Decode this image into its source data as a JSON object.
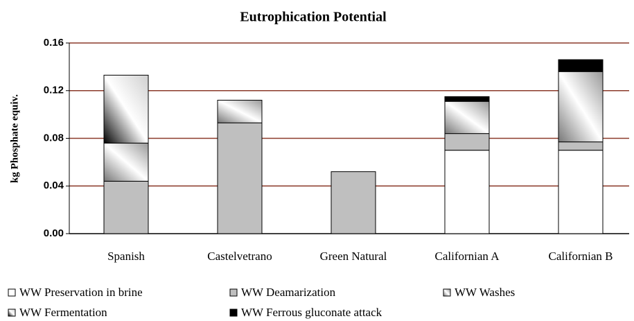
{
  "chart_data": {
    "type": "stacked_bar",
    "title": "Eutrophication Potential",
    "y_label": "kg Phosphate equiv.",
    "categories": [
      "Spanish",
      "Castelvetrano",
      "Green Natural",
      "Californian A",
      "Californian B"
    ],
    "series": [
      {
        "name": "WW Preservation in brine",
        "color": "#ffffff",
        "values": [
          0,
          0,
          0,
          0.07,
          0.07
        ]
      },
      {
        "name": "WW Deamarization",
        "color": "#bfbfbf",
        "values": [
          0.044,
          0.093,
          0.052,
          0.014,
          0.007
        ]
      },
      {
        "name": "WW Washes",
        "color": [
          "#777777",
          "#ffffff",
          "#999999"
        ],
        "values": [
          0.032,
          0.019,
          0,
          0.027,
          0.059
        ]
      },
      {
        "name": "WW Fermentation",
        "color": [
          "#000000",
          "#ffffff",
          "#d0d0d0"
        ],
        "values": [
          0.057,
          0,
          0,
          0,
          0
        ]
      },
      {
        "name": "WW Ferrous gluconate attack",
        "color": "#000000",
        "values": [
          0,
          0,
          0,
          0.004,
          0.01
        ]
      }
    ],
    "ylim": [
      0,
      0.16
    ],
    "yticks": [
      {
        "value": 0,
        "label": "0.00"
      },
      0.04,
      0.08,
      0.12,
      0.16
    ],
    "grid": true,
    "grid_color": "#8b3a2a",
    "legend": "bottom"
  }
}
